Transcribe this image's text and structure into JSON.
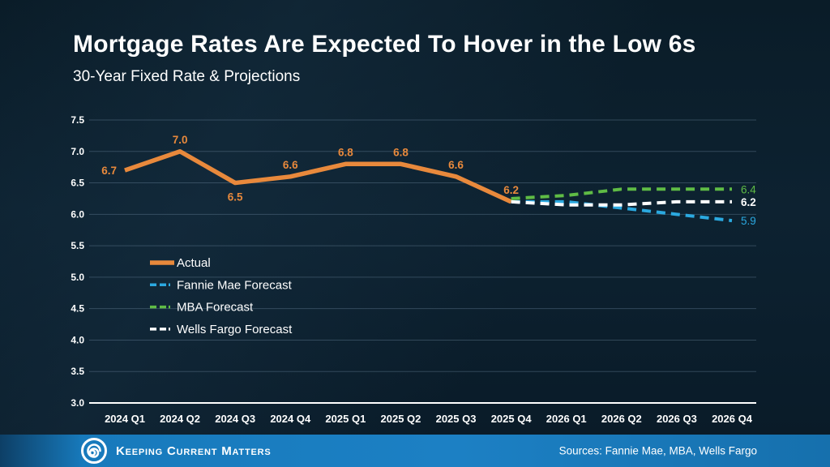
{
  "header": {
    "title": "Mortgage Rates Are Expected To Hover in the Low 6s",
    "subtitle": "30-Year Fixed Rate & Projections"
  },
  "chart_data": {
    "type": "line",
    "title": "30-Year Fixed Rate & Projections",
    "categories": [
      "2024 Q1",
      "2024 Q2",
      "2024 Q3",
      "2024 Q4",
      "2025 Q1",
      "2025 Q2",
      "2025 Q3",
      "2025 Q4",
      "2026 Q1",
      "2026 Q2",
      "2026 Q3",
      "2026 Q4"
    ],
    "ylim": [
      3.0,
      7.5
    ],
    "ytick_step": 0.5,
    "ytick_labels": [
      "3.0",
      "3.5",
      "4.0",
      "4.5",
      "5.0",
      "5.5",
      "6.0",
      "6.5",
      "7.0",
      "7.5"
    ],
    "grid": true,
    "legend_position": "middle-left",
    "series": [
      {
        "name": "Actual",
        "color": "#E8893C",
        "style": "solid",
        "start_index": 0,
        "values": [
          6.7,
          7.0,
          6.5,
          6.6,
          6.8,
          6.8,
          6.6,
          6.2
        ],
        "point_labels": [
          "6.7",
          "7.0",
          "6.5",
          "6.6",
          "6.8",
          "6.8",
          "6.6",
          "6.2"
        ],
        "label_sides": [
          "left",
          "above",
          "below",
          "above",
          "above",
          "above",
          "above",
          "above"
        ]
      },
      {
        "name": "Fannie Mae Forecast",
        "color": "#2BA9E0",
        "style": "dashed",
        "start_index": 7,
        "values": [
          6.2,
          6.2,
          6.1,
          6.0,
          5.9
        ],
        "end_label": "5.9"
      },
      {
        "name": "MBA Forecast",
        "color": "#5FBC45",
        "style": "dashed",
        "start_index": 7,
        "values": [
          6.25,
          6.3,
          6.4,
          6.4,
          6.4
        ],
        "end_label": "6.4"
      },
      {
        "name": "Wells Fargo Forecast",
        "color": "#FFFFFF",
        "style": "dashed",
        "start_index": 7,
        "values": [
          6.2,
          6.15,
          6.15,
          6.2,
          6.2
        ],
        "end_label": "6.2"
      }
    ]
  },
  "footer": {
    "brand": "Keeping Current Matters",
    "logo": "kcm-swirl-logo",
    "sources": "Sources: Fannie Mae, MBA, Wells Fargo",
    "bar_color": "#1C80C4"
  }
}
